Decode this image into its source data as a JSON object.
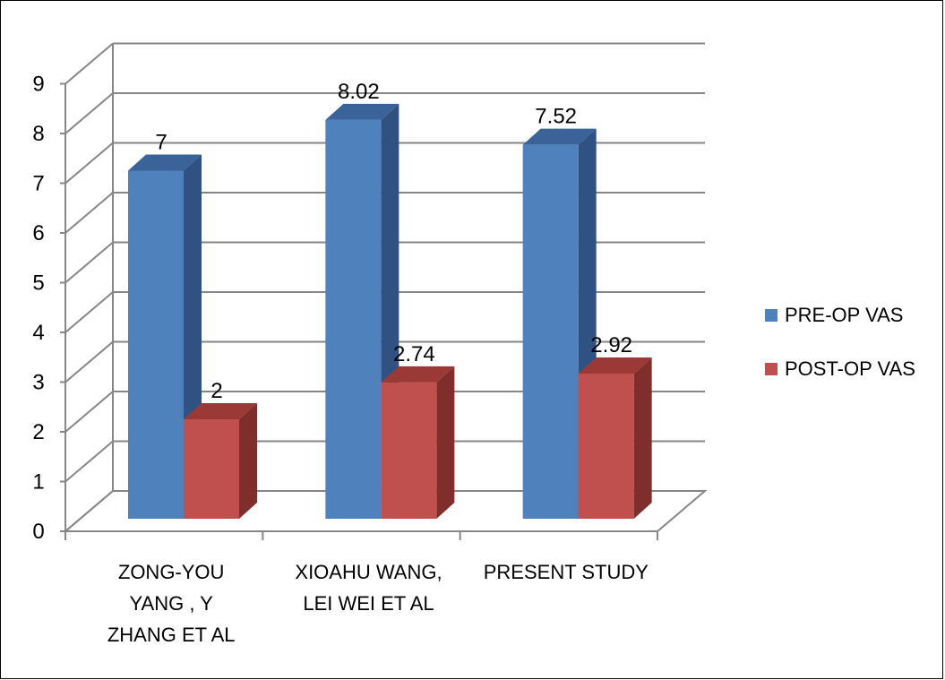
{
  "chart_data": {
    "type": "bar",
    "categories": [
      [
        "ZONG-YOU",
        "YANG , Y",
        "ZHANG ET AL"
      ],
      [
        "XIOAHU WANG,",
        "LEI WEI ET AL"
      ],
      [
        "PRESENT STUDY"
      ]
    ],
    "series": [
      {
        "name": "PRE-OP VAS",
        "values": [
          7,
          8.02,
          7.52
        ],
        "labels": [
          "7",
          "8.02",
          "7.52"
        ],
        "color": "#4F81BD",
        "side_color": "#2F5282",
        "top_color": "#3A6499"
      },
      {
        "name": "POST-OP VAS",
        "values": [
          2,
          2.74,
          2.92
        ],
        "labels": [
          "2",
          "2.74",
          "2.92"
        ],
        "color": "#C0504D",
        "side_color": "#7F2E2C",
        "top_color": "#9A3936"
      }
    ],
    "ylim": [
      0,
      9
    ],
    "yticks": [
      "0",
      "1",
      "2",
      "3",
      "4",
      "5",
      "6",
      "7",
      "8",
      "9"
    ],
    "grid": true,
    "legend_position": "right",
    "three_d": true
  }
}
